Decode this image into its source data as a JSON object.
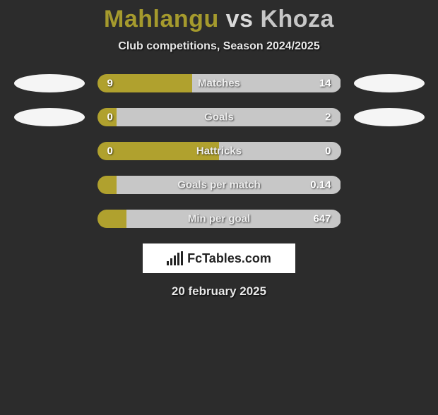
{
  "title": {
    "player1": "Mahlangu",
    "vs": "vs",
    "player2": "Khoza",
    "player1_color": "#a59a2d",
    "vs_color": "#d9d9d9",
    "player2_color": "#c7c7c7"
  },
  "subtitle": "Club competitions, Season 2024/2025",
  "colors": {
    "left_bar": "#b0a12e",
    "right_bar": "#c7c7c7",
    "background": "#2c2c2c",
    "badge": "#f5f5f5"
  },
  "stats": [
    {
      "label": "Matches",
      "left_value": "9",
      "right_value": "14",
      "left_pct": 39,
      "right_pct": 61,
      "show_badges": true
    },
    {
      "label": "Goals",
      "left_value": "0",
      "right_value": "2",
      "left_pct": 8,
      "right_pct": 92,
      "show_badges": true
    },
    {
      "label": "Hattricks",
      "left_value": "0",
      "right_value": "0",
      "left_pct": 50,
      "right_pct": 50,
      "show_badges": false
    },
    {
      "label": "Goals per match",
      "left_value": "",
      "right_value": "0.14",
      "left_pct": 8,
      "right_pct": 92,
      "show_badges": false
    },
    {
      "label": "Min per goal",
      "left_value": "",
      "right_value": "647",
      "left_pct": 12,
      "right_pct": 88,
      "show_badges": false
    }
  ],
  "logo_text": "FcTables.com",
  "date": "20 february 2025"
}
